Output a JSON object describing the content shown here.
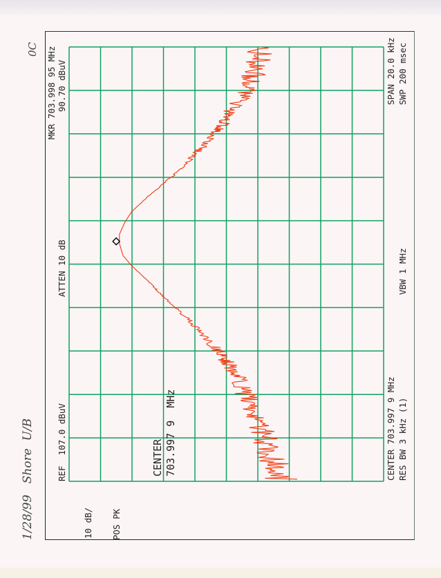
{
  "header": {
    "marker_freq": "MKR 703.998 95 MHz",
    "marker_level": "90.70 dBuV",
    "atten": "ATTEN 10 dB",
    "ref": "REF  107.0 dBuV",
    "span": "SPAN 20.0 kHz",
    "sweep": "SWP 200 msec",
    "vbw": "VBW 1 MHz",
    "center": "CENTER 703.997 9 MHz",
    "rbw": "RES BW 3 kHz (1)",
    "scale": "10 dB/",
    "detector": "POS PK",
    "center_label": "CENTER",
    "center_value": "703.997 9  MHz"
  },
  "handwriting": {
    "note": "1/28/99   Shore  U/B",
    "corner": "0C"
  },
  "colors": {
    "grid": "#10a060",
    "trace": "#f03a10",
    "marker": "#000000"
  },
  "chart_data": {
    "type": "line",
    "orientation": "rotated 90 degrees counter-clockwise (frequency runs bottom to top, amplitude decreases left to right)",
    "x_axis": "frequency offset from center (kHz)",
    "xlim": [
      -10,
      10
    ],
    "ylim": [
      7,
      107
    ],
    "y_units": "dBuV",
    "divisions": {
      "frequency": 10,
      "amplitude": 10
    },
    "grid": true,
    "x": [
      -9.9,
      -8.9,
      -7.75,
      -6.67,
      -5.6,
      -4.57,
      -3.8,
      -2.76,
      -1.5,
      -0.86,
      -0.06,
      0.4,
      0.95,
      1.37,
      1.9,
      2.4,
      3.2,
      4.0,
      5.1,
      6.0,
      6.6,
      7.2,
      8.0,
      8.9,
      10.0
    ],
    "y": [
      40,
      42.6,
      45.5,
      48.3,
      52.1,
      56.5,
      60.8,
      67.4,
      77.1,
      81.3,
      87.2,
      89.9,
      91,
      91,
      89.4,
      87.2,
      81.3,
      74.5,
      66.8,
      60.4,
      57.5,
      54.9,
      50.5,
      47.7,
      45.9
    ],
    "marker": {
      "x": 1.05,
      "y": 90.7
    }
  }
}
